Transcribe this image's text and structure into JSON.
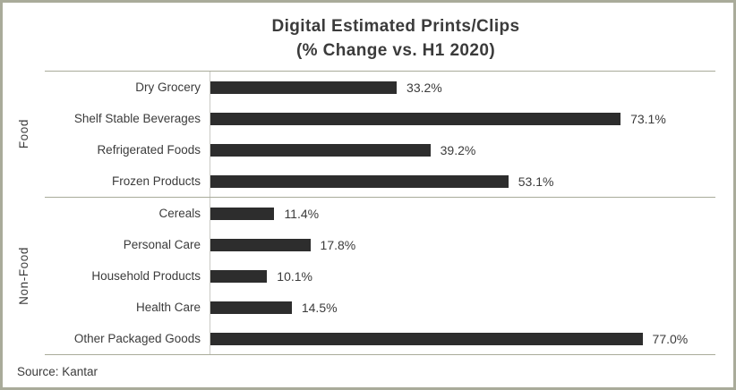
{
  "title": {
    "line1": "Digital Estimated Prints/Clips",
    "line2": "(% Change vs. H1 2020)"
  },
  "source": "Source: Kantar",
  "colors": {
    "bar": "#2d2d2d",
    "frame": "#a9ab9a",
    "axis_line": "#c9c9c4",
    "text": "#3b3b3b"
  },
  "chart_data": {
    "type": "bar",
    "orientation": "horizontal",
    "title": "Digital Estimated Prints/Clips (% Change vs. H1 2020)",
    "value_suffix": "%",
    "xlim": [
      0,
      90
    ],
    "grid": false,
    "legend": false,
    "groups": [
      {
        "name": "Food",
        "categories": [
          "Dry Grocery",
          "Shelf Stable Beverages",
          "Refrigerated Foods",
          "Frozen Products"
        ],
        "values": [
          33.2,
          73.1,
          39.2,
          53.1
        ],
        "labels": [
          "33.2%",
          "73.1%",
          "39.2%",
          "53.1%"
        ]
      },
      {
        "name": "Non-Food",
        "categories": [
          "Cereals",
          "Personal Care",
          "Household Products",
          "Health Care",
          "Other Packaged Goods"
        ],
        "values": [
          11.4,
          17.8,
          10.1,
          14.5,
          77.0
        ],
        "labels": [
          "11.4%",
          "17.8%",
          "10.1%",
          "14.5%",
          "77.0%"
        ]
      }
    ]
  }
}
